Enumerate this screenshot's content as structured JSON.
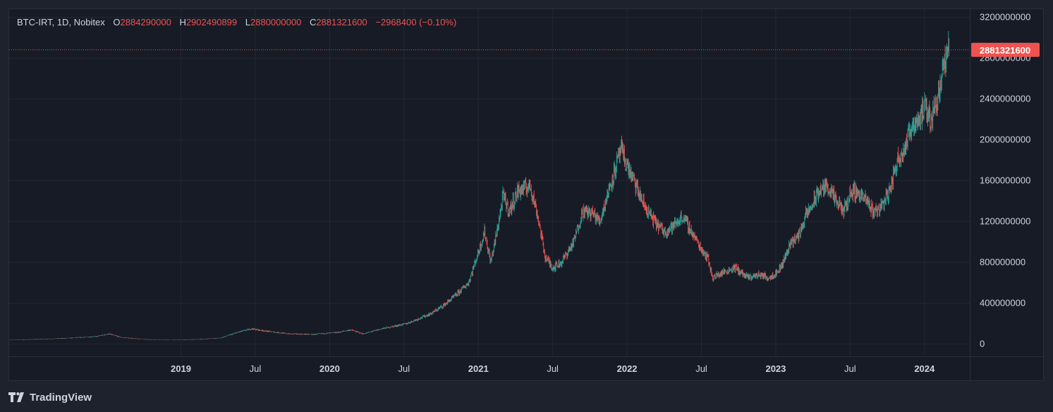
{
  "legend": {
    "symbol": "BTC-IRT, 1D, Nobitex",
    "open_label": "O",
    "open": "2884290000",
    "high_label": "H",
    "high": "2902490899",
    "low_label": "L",
    "low": "2880000000",
    "close_label": "C",
    "close": "2881321600",
    "change": "−2968400 (−0.10%)"
  },
  "price_tag": "2881321600",
  "branding": "TradingView",
  "colors": {
    "up": "#26a69a",
    "down": "#ef5350",
    "bg": "#171b26",
    "grid": "#232733",
    "text": "#d1d4dc"
  },
  "chart_data": {
    "type": "candlestick",
    "title": "BTC-IRT, 1D, Nobitex",
    "ylim": [
      -120000000,
      3280000000
    ],
    "yticks": [
      0,
      400000000,
      800000000,
      1200000000,
      1600000000,
      2000000000,
      2400000000,
      2800000000,
      3200000000
    ],
    "ytick_labels": [
      "0",
      "400000000",
      "800000000",
      "1200000000",
      "1600000000",
      "2000000000",
      "2400000000",
      "2800000000",
      "3200000000"
    ],
    "last_price": 2881321600,
    "xlim": [
      0,
      1440
    ],
    "xticks": [
      {
        "label": "2019",
        "t": 13.8,
        "bold": true
      },
      {
        "label": "Jul",
        "t": 19.8,
        "bold": false
      },
      {
        "label": "2020",
        "t": 25.8,
        "bold": true
      },
      {
        "label": "Jul",
        "t": 31.8,
        "bold": false
      },
      {
        "label": "2021",
        "t": 37.8,
        "bold": true
      },
      {
        "label": "Jul",
        "t": 43.8,
        "bold": false
      },
      {
        "label": "2022",
        "t": 49.8,
        "bold": true
      },
      {
        "label": "Jul",
        "t": 55.8,
        "bold": false
      },
      {
        "label": "2023",
        "t": 61.8,
        "bold": true
      },
      {
        "label": "Jul",
        "t": 67.8,
        "bold": false
      },
      {
        "label": "2024",
        "t": 73.8,
        "bold": true
      }
    ],
    "t_range": [
      0,
      76.6
    ],
    "close_path": [
      [
        0,
        40000000
      ],
      [
        3,
        50000000
      ],
      [
        5,
        60000000
      ],
      [
        7,
        75000000
      ],
      [
        8,
        100000000
      ],
      [
        9,
        65000000
      ],
      [
        11,
        45000000
      ],
      [
        13,
        40000000
      ],
      [
        15,
        45000000
      ],
      [
        17,
        60000000
      ],
      [
        18.5,
        120000000
      ],
      [
        19.5,
        150000000
      ],
      [
        20.5,
        130000000
      ],
      [
        22.5,
        100000000
      ],
      [
        24.5,
        95000000
      ],
      [
        26.5,
        115000000
      ],
      [
        27.5,
        140000000
      ],
      [
        28.5,
        100000000
      ],
      [
        30,
        150000000
      ],
      [
        32,
        200000000
      ],
      [
        33,
        250000000
      ],
      [
        34,
        300000000
      ],
      [
        35,
        380000000
      ],
      [
        36,
        480000000
      ],
      [
        37,
        600000000
      ],
      [
        37.8,
        900000000
      ],
      [
        38.3,
        1100000000
      ],
      [
        38.8,
        800000000
      ],
      [
        39.3,
        1100000000
      ],
      [
        39.8,
        1450000000
      ],
      [
        40.3,
        1300000000
      ],
      [
        41,
        1500000000
      ],
      [
        42,
        1550000000
      ],
      [
        42.6,
        1250000000
      ],
      [
        43.2,
        850000000
      ],
      [
        43.8,
        750000000
      ],
      [
        44.5,
        800000000
      ],
      [
        45.5,
        1000000000
      ],
      [
        46.2,
        1300000000
      ],
      [
        47,
        1280000000
      ],
      [
        47.6,
        1200000000
      ],
      [
        48.3,
        1500000000
      ],
      [
        48.8,
        1700000000
      ],
      [
        49.3,
        1900000000
      ],
      [
        49.8,
        1750000000
      ],
      [
        50.5,
        1550000000
      ],
      [
        51.2,
        1350000000
      ],
      [
        52,
        1200000000
      ],
      [
        52.8,
        1100000000
      ],
      [
        53.5,
        1150000000
      ],
      [
        54.3,
        1250000000
      ],
      [
        55,
        1100000000
      ],
      [
        55.7,
        950000000
      ],
      [
        56.3,
        850000000
      ],
      [
        56.7,
        650000000
      ],
      [
        57.5,
        700000000
      ],
      [
        58.5,
        750000000
      ],
      [
        59.5,
        650000000
      ],
      [
        60.5,
        680000000
      ],
      [
        61.2,
        650000000
      ],
      [
        61.9,
        700000000
      ],
      [
        62.4,
        800000000
      ],
      [
        63,
        1000000000
      ],
      [
        63.6,
        1050000000
      ],
      [
        64.2,
        1250000000
      ],
      [
        64.7,
        1350000000
      ],
      [
        65.3,
        1500000000
      ],
      [
        66,
        1550000000
      ],
      [
        66.6,
        1400000000
      ],
      [
        67.3,
        1300000000
      ],
      [
        67.9,
        1500000000
      ],
      [
        68.5,
        1480000000
      ],
      [
        69.1,
        1400000000
      ],
      [
        69.7,
        1300000000
      ],
      [
        70.3,
        1350000000
      ],
      [
        71,
        1500000000
      ],
      [
        71.6,
        1800000000
      ],
      [
        72.3,
        1950000000
      ],
      [
        72.8,
        2150000000
      ],
      [
        73.3,
        2200000000
      ],
      [
        73.8,
        2300000000
      ],
      [
        74.3,
        2200000000
      ],
      [
        74.8,
        2400000000
      ],
      [
        75.3,
        2700000000
      ],
      [
        75.8,
        2881321600
      ]
    ]
  }
}
